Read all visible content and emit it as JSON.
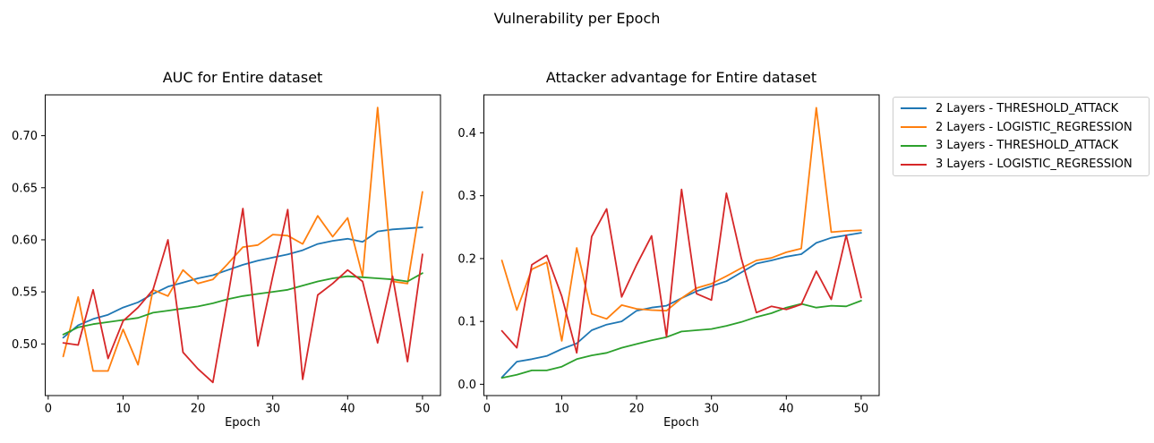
{
  "figure": {
    "suptitle": "Vulnerability per Epoch",
    "background": "#ffffff",
    "text_color": "#000000",
    "spine_color": "#000000",
    "legend_border_color": "#cccccc"
  },
  "legend": {
    "entries": [
      {
        "label": "2 Layers - THRESHOLD_ATTACK",
        "color": "#1f77b4"
      },
      {
        "label": "2 Layers - LOGISTIC_REGRESSION",
        "color": "#ff7f0e"
      },
      {
        "label": "3 Layers - THRESHOLD_ATTACK",
        "color": "#2ca02c"
      },
      {
        "label": "3 Layers - LOGISTIC_REGRESSION",
        "color": "#d62728"
      }
    ]
  },
  "chart_data": [
    {
      "type": "line",
      "title": "AUC for Entire dataset",
      "xlabel": "Epoch",
      "x": [
        2,
        4,
        6,
        8,
        10,
        12,
        14,
        16,
        18,
        20,
        22,
        24,
        26,
        28,
        30,
        32,
        34,
        36,
        38,
        40,
        42,
        44,
        46,
        48,
        50
      ],
      "xlim": [
        -0.4,
        52.4
      ],
      "ylim": [
        0.4504,
        0.7392
      ],
      "xtick_vals": [
        0,
        10,
        20,
        30,
        40,
        50
      ],
      "xtick_labels": [
        "0",
        "10",
        "20",
        "30",
        "40",
        "50"
      ],
      "ytick_vals": [
        0.5,
        0.55,
        0.6,
        0.65,
        0.7
      ],
      "ytick_labels": [
        "0.50",
        "0.55",
        "0.60",
        "0.65",
        "0.70"
      ],
      "grid": false,
      "series": [
        {
          "name": "2 Layers - THRESHOLD_ATTACK",
          "color": "#1f77b4",
          "values": [
            0.506,
            0.518,
            0.524,
            0.528,
            0.535,
            0.54,
            0.548,
            0.555,
            0.559,
            0.563,
            0.566,
            0.571,
            0.576,
            0.58,
            0.583,
            0.586,
            0.59,
            0.596,
            0.599,
            0.601,
            0.598,
            0.608,
            0.61,
            0.611,
            0.612
          ]
        },
        {
          "name": "2 Layers - LOGISTIC_REGRESSION",
          "color": "#ff7f0e",
          "values": [
            0.488,
            0.545,
            0.474,
            0.474,
            0.514,
            0.48,
            0.552,
            0.546,
            0.571,
            0.558,
            0.562,
            0.577,
            0.593,
            0.595,
            0.605,
            0.604,
            0.596,
            0.623,
            0.603,
            0.621,
            0.565,
            0.727,
            0.56,
            0.558,
            0.646
          ]
        },
        {
          "name": "3 Layers - THRESHOLD_ATTACK",
          "color": "#2ca02c",
          "values": [
            0.509,
            0.516,
            0.519,
            0.521,
            0.523,
            0.525,
            0.53,
            0.532,
            0.534,
            0.536,
            0.539,
            0.543,
            0.546,
            0.548,
            0.55,
            0.552,
            0.556,
            0.56,
            0.563,
            0.565,
            0.564,
            0.563,
            0.562,
            0.56,
            0.568
          ]
        },
        {
          "name": "3 Layers - LOGISTIC_REGRESSION",
          "color": "#d62728",
          "values": [
            0.501,
            0.499,
            0.552,
            0.486,
            0.522,
            0.535,
            0.552,
            0.6,
            0.492,
            0.476,
            0.463,
            0.545,
            0.63,
            0.498,
            0.565,
            0.629,
            0.466,
            0.547,
            0.558,
            0.571,
            0.56,
            0.501,
            0.565,
            0.483,
            0.586
          ]
        }
      ]
    },
    {
      "type": "line",
      "title": "Attacker advantage for Entire dataset",
      "xlabel": "Epoch",
      "x": [
        2,
        4,
        6,
        8,
        10,
        12,
        14,
        16,
        18,
        20,
        22,
        24,
        26,
        28,
        30,
        32,
        34,
        36,
        38,
        40,
        42,
        44,
        46,
        48,
        50
      ],
      "xlim": [
        -0.4,
        52.4
      ],
      "ylim": [
        -0.018,
        0.4605
      ],
      "xtick_vals": [
        0,
        10,
        20,
        30,
        40,
        50
      ],
      "xtick_labels": [
        "0",
        "10",
        "20",
        "30",
        "40",
        "50"
      ],
      "ytick_vals": [
        0.0,
        0.1,
        0.2,
        0.3,
        0.4
      ],
      "ytick_labels": [
        "0.0",
        "0.1",
        "0.2",
        "0.3",
        "0.4"
      ],
      "grid": false,
      "series": [
        {
          "name": "2 Layers - THRESHOLD_ATTACK",
          "color": "#1f77b4",
          "values": [
            0.011,
            0.036,
            0.04,
            0.045,
            0.056,
            0.065,
            0.086,
            0.095,
            0.1,
            0.117,
            0.122,
            0.125,
            0.137,
            0.148,
            0.156,
            0.164,
            0.178,
            0.192,
            0.197,
            0.203,
            0.207,
            0.225,
            0.233,
            0.237,
            0.241
          ]
        },
        {
          "name": "2 Layers - LOGISTIC_REGRESSION",
          "color": "#ff7f0e",
          "values": [
            0.197,
            0.118,
            0.183,
            0.194,
            0.069,
            0.217,
            0.112,
            0.104,
            0.126,
            0.12,
            0.118,
            0.117,
            0.137,
            0.153,
            0.16,
            0.172,
            0.185,
            0.197,
            0.201,
            0.21,
            0.216,
            0.44,
            0.242,
            0.244,
            0.245
          ]
        },
        {
          "name": "3 Layers - THRESHOLD_ATTACK",
          "color": "#2ca02c",
          "values": [
            0.01,
            0.015,
            0.022,
            0.022,
            0.028,
            0.04,
            0.046,
            0.05,
            0.058,
            0.064,
            0.07,
            0.075,
            0.084,
            0.086,
            0.088,
            0.093,
            0.099,
            0.107,
            0.113,
            0.122,
            0.128,
            0.122,
            0.125,
            0.124,
            0.133
          ]
        },
        {
          "name": "3 Layers - LOGISTIC_REGRESSION",
          "color": "#d62728",
          "values": [
            0.085,
            0.058,
            0.19,
            0.205,
            0.14,
            0.05,
            0.235,
            0.279,
            0.139,
            0.19,
            0.236,
            0.076,
            0.31,
            0.144,
            0.134,
            0.304,
            0.2,
            0.114,
            0.124,
            0.119,
            0.127,
            0.18,
            0.135,
            0.237,
            0.138
          ]
        }
      ]
    }
  ]
}
